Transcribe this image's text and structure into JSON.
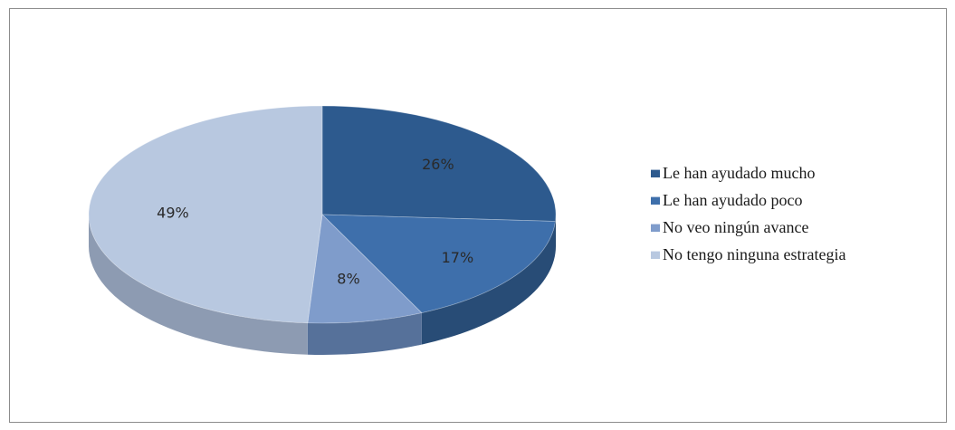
{
  "chart_data": {
    "type": "pie",
    "style": "3d",
    "title": "",
    "legend_position": "right",
    "slices": [
      {
        "label": "Le han ayudado mucho",
        "value": 26,
        "display": "26%",
        "color": "#2d5a8e",
        "side_color": "#1d3d62"
      },
      {
        "label": "Le han ayudado poco",
        "value": 17,
        "display": "17%",
        "color": "#3e6fab",
        "side_color": "#284c76"
      },
      {
        "label": "No veo ningún avance",
        "value": 8,
        "display": "8%",
        "color": "#7f9ccb",
        "side_color": "#56719a"
      },
      {
        "label": "No tengo ninguna estrategia",
        "value": 49,
        "display": "49%",
        "color": "#b8c8e0",
        "side_color": "#8d9bb2"
      }
    ]
  }
}
